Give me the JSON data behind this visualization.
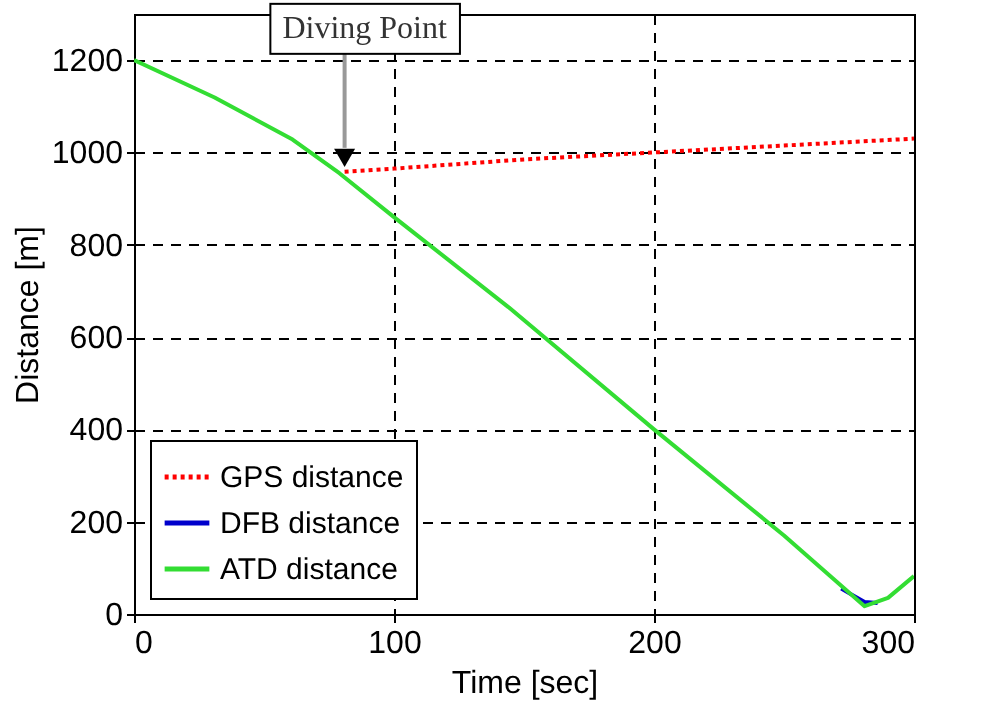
{
  "chart_data": {
    "type": "line",
    "xlabel": "Time [sec]",
    "ylabel": "Distance [m]",
    "xlim": [
      0,
      300
    ],
    "ylim": [
      0,
      1300
    ],
    "xticks": [
      0,
      100,
      200,
      300
    ],
    "yticks": [
      0,
      200,
      400,
      600,
      800,
      {
        "value": 1000,
        "label": "1000"
      },
      {
        "value": 1200,
        "label": "1200"
      }
    ],
    "grid": true,
    "legend": "bottom left",
    "annotations": [
      "Diving Point"
    ],
    "series": [
      {
        "name": "GPS distance",
        "color": "#ff0000",
        "line_style": "dotted",
        "x": [
          81,
          100,
          150,
          200,
          250,
          300
        ],
        "values": [
          958,
          965,
          985,
          1000,
          1015,
          1030
        ]
      },
      {
        "name": "DFB distance",
        "color": "#0000cc",
        "line_style": "solid",
        "x": [
          272,
          281,
          286
        ],
        "values": [
          55,
          26,
          24
        ]
      },
      {
        "name": "ATD distance",
        "color": "#33dd33",
        "line_style": "solid",
        "x": [
          0,
          31,
          61,
          79,
          100,
          144,
          200,
          250,
          281,
          290,
          300
        ],
        "values": [
          1200,
          1119,
          1028,
          955,
          860,
          665,
          400,
          170,
          17,
          35,
          82
        ]
      }
    ]
  }
}
